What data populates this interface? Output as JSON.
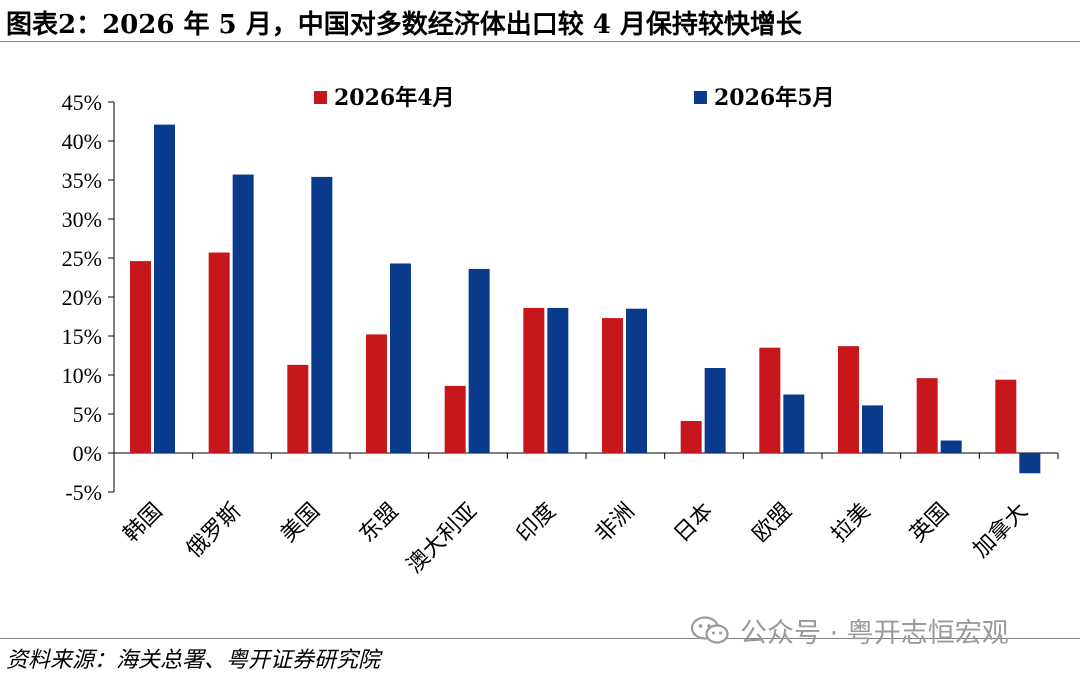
{
  "header": {
    "title": "图表2：2026 年 5 月，中国对多数经济体出口较 4 月保持较快增长"
  },
  "footer": {
    "source": "资料来源：海关总署、粤开证券研究院",
    "watermark": "公众号 · 粤开志恒宏观",
    "watermark_icon": "wechat-icon"
  },
  "colors": {
    "series_april": "#C8161D",
    "series_may": "#0A3A8C"
  },
  "chart_data": {
    "type": "bar",
    "title": "",
    "xlabel": "",
    "ylabel": "",
    "ylim": [
      -5,
      45
    ],
    "yticks": [
      "45%",
      "40%",
      "35%",
      "30%",
      "25%",
      "20%",
      "15%",
      "10%",
      "5%",
      "0%",
      "-5%"
    ],
    "ytick_values": [
      45,
      40,
      35,
      30,
      25,
      20,
      15,
      10,
      5,
      0,
      -5
    ],
    "grid": false,
    "legend_placement": "top",
    "categories": [
      "韩国",
      "俄罗斯",
      "美国",
      "东盟",
      "澳大利亚",
      "印度",
      "非洲",
      "日本",
      "欧盟",
      "拉美",
      "英国",
      "加拿大"
    ],
    "series": [
      {
        "name": "2026年4月",
        "values": [
          24.6,
          25.7,
          11.3,
          15.2,
          8.6,
          18.6,
          17.3,
          4.1,
          13.5,
          13.7,
          9.6,
          9.4
        ]
      },
      {
        "name": "2026年5月",
        "values": [
          42.1,
          35.7,
          35.4,
          24.3,
          23.6,
          18.6,
          18.5,
          10.9,
          7.5,
          6.1,
          1.6,
          -2.6
        ]
      }
    ]
  }
}
